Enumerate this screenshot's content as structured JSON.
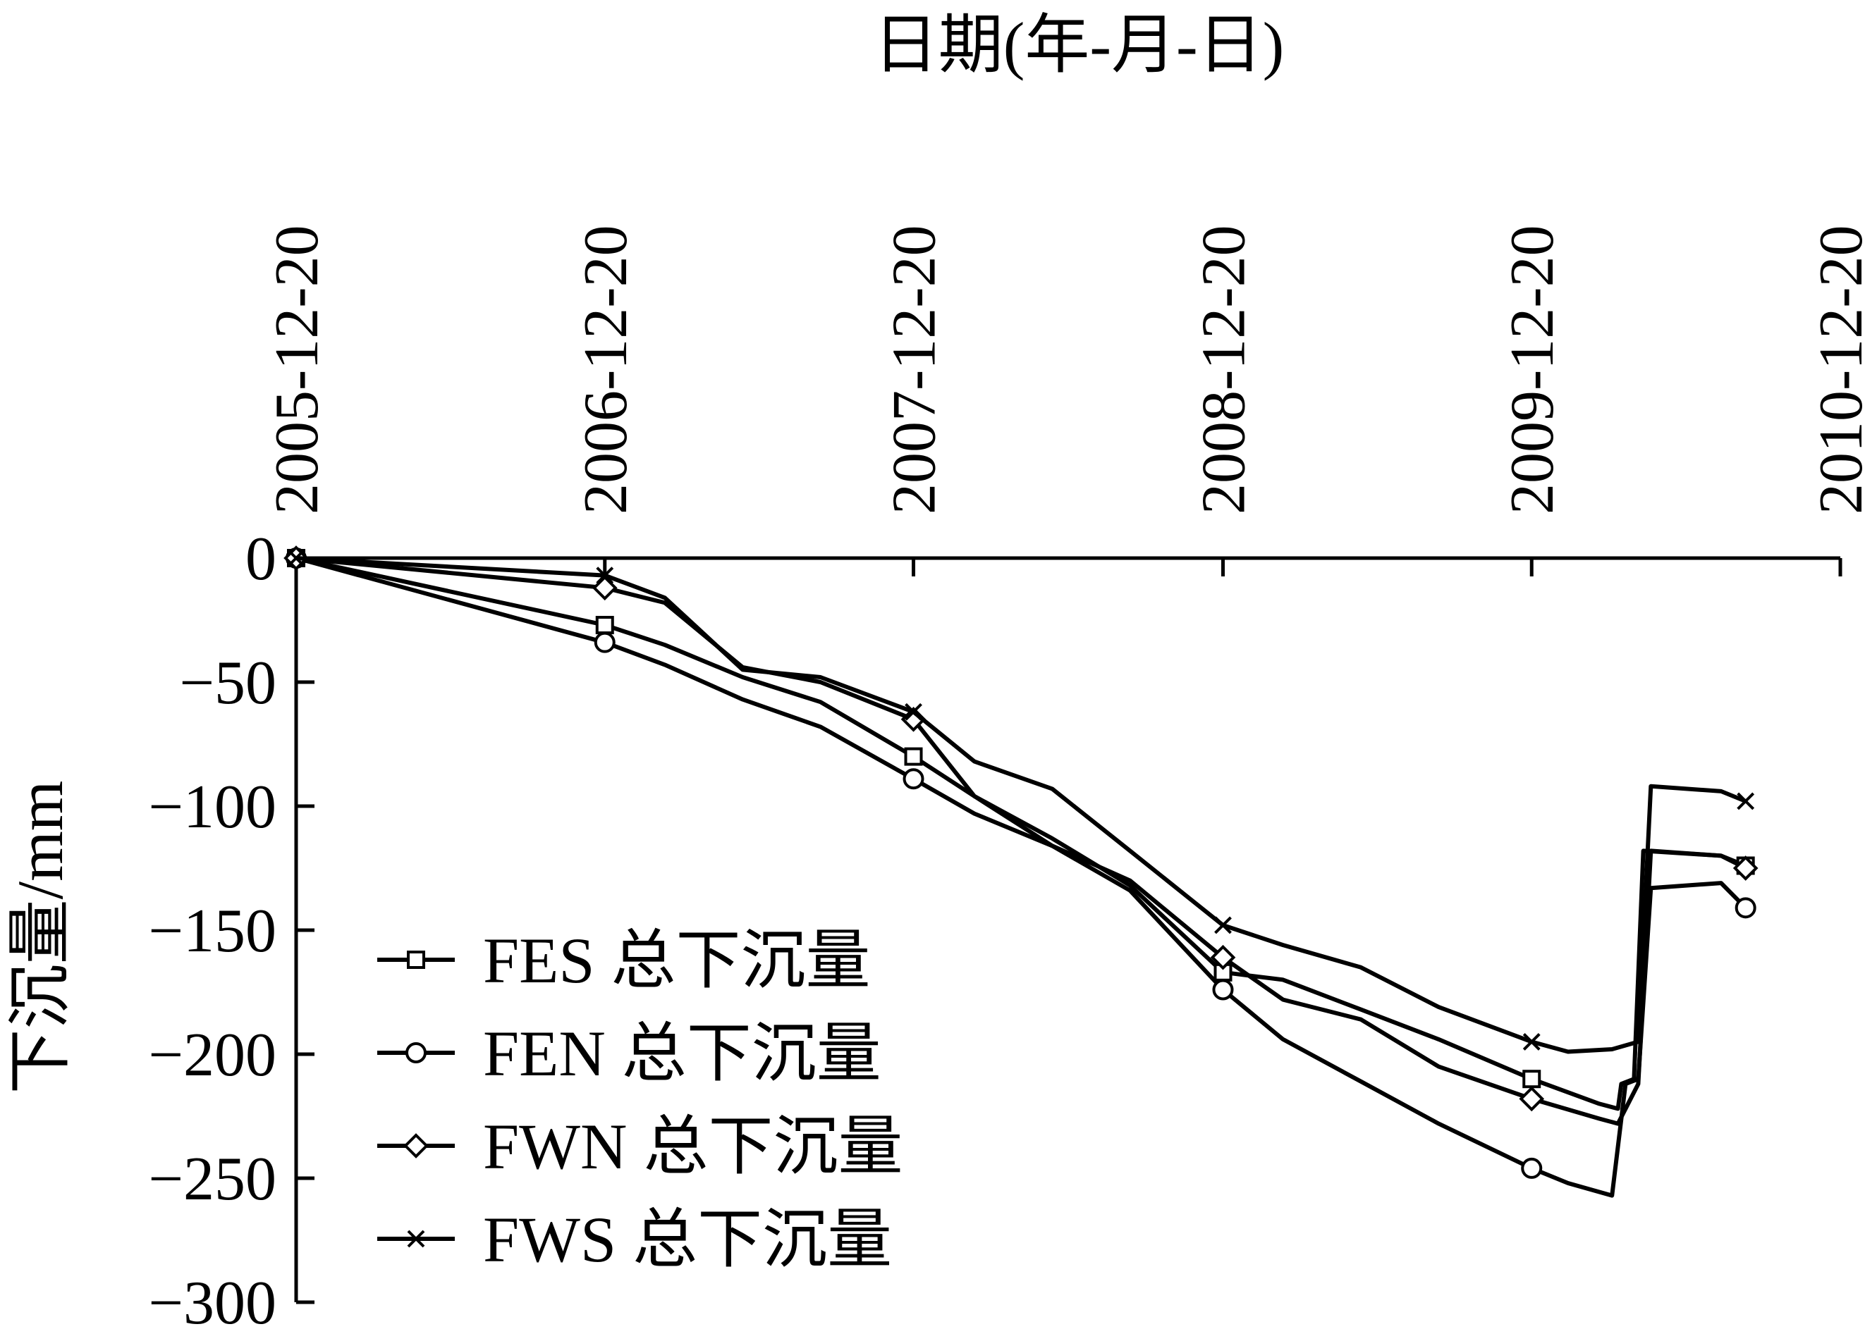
{
  "chart_data": {
    "type": "line",
    "title": "",
    "xlabel": "日期(年-月-日)",
    "ylabel": "下沉量/mm",
    "x_axis_position": "top",
    "x_tick_labels": [
      "2005-12-20",
      "2006-12-20",
      "2007-12-20",
      "2008-12-20",
      "2009-12-20",
      "2010-12-20"
    ],
    "x_range": [
      "2005-12-20",
      "2010-12-20"
    ],
    "y_ticks": [
      0,
      -50,
      -100,
      -150,
      -200,
      -250,
      -300
    ],
    "ylim": [
      -300,
      0
    ],
    "grid": false,
    "legend_position": "bottom-left",
    "series": [
      {
        "name": "FES 总下沉量",
        "marker": "square",
        "points": [
          [
            "2005-12-20",
            0
          ],
          [
            "2006-12-20",
            -27
          ],
          [
            "2007-03-01",
            -35
          ],
          [
            "2007-06-01",
            -48
          ],
          [
            "2007-09-01",
            -58
          ],
          [
            "2007-12-20",
            -80
          ],
          [
            "2008-03-01",
            -96
          ],
          [
            "2008-06-01",
            -113
          ],
          [
            "2008-09-01",
            -132
          ],
          [
            "2008-12-20",
            -167
          ],
          [
            "2009-03-01",
            -170
          ],
          [
            "2009-06-01",
            -182
          ],
          [
            "2009-09-01",
            -194
          ],
          [
            "2009-12-20",
            -210
          ],
          [
            "2010-03-10",
            -220
          ],
          [
            "2010-04-01",
            -222
          ],
          [
            "2010-04-05",
            -212
          ],
          [
            "2010-04-20",
            -210
          ],
          [
            "2010-05-01",
            -118
          ],
          [
            "2010-08-01",
            -120
          ],
          [
            "2010-08-30",
            -124
          ]
        ]
      },
      {
        "name": "FEN 总下沉量",
        "marker": "circle",
        "points": [
          [
            "2005-12-20",
            0
          ],
          [
            "2006-12-20",
            -34
          ],
          [
            "2007-03-01",
            -43
          ],
          [
            "2007-06-01",
            -57
          ],
          [
            "2007-09-01",
            -68
          ],
          [
            "2007-12-20",
            -89
          ],
          [
            "2008-03-01",
            -103
          ],
          [
            "2008-06-01",
            -116
          ],
          [
            "2008-09-01",
            -134
          ],
          [
            "2008-12-20",
            -174
          ],
          [
            "2009-03-01",
            -194
          ],
          [
            "2009-06-01",
            -211
          ],
          [
            "2009-09-01",
            -228
          ],
          [
            "2009-12-20",
            -246
          ],
          [
            "2010-02-01",
            -252
          ],
          [
            "2010-03-25",
            -257
          ],
          [
            "2010-04-10",
            -212
          ],
          [
            "2010-04-25",
            -210
          ],
          [
            "2010-05-10",
            -133
          ],
          [
            "2010-08-01",
            -131
          ],
          [
            "2010-08-30",
            -141
          ]
        ]
      },
      {
        "name": "FWN 总下沉量",
        "marker": "diamond",
        "points": [
          [
            "2005-12-20",
            0
          ],
          [
            "2006-12-20",
            -12
          ],
          [
            "2007-03-01",
            -18
          ],
          [
            "2007-06-01",
            -44
          ],
          [
            "2007-09-01",
            -50
          ],
          [
            "2007-12-20",
            -65
          ],
          [
            "2008-03-01",
            -96
          ],
          [
            "2008-06-01",
            -116
          ],
          [
            "2008-09-01",
            -130
          ],
          [
            "2008-12-20",
            -161
          ],
          [
            "2009-03-01",
            -178
          ],
          [
            "2009-06-01",
            -186
          ],
          [
            "2009-09-01",
            -205
          ],
          [
            "2009-12-20",
            -218
          ],
          [
            "2010-03-10",
            -226
          ],
          [
            "2010-04-01",
            -228
          ],
          [
            "2010-04-25",
            -212
          ],
          [
            "2010-05-10",
            -118
          ],
          [
            "2010-08-01",
            -120
          ],
          [
            "2010-08-30",
            -125
          ]
        ]
      },
      {
        "name": "FWS 总下沉量",
        "marker": "cross",
        "points": [
          [
            "2005-12-20",
            0
          ],
          [
            "2006-12-20",
            -7
          ],
          [
            "2007-03-01",
            -16
          ],
          [
            "2007-06-01",
            -45
          ],
          [
            "2007-09-01",
            -48
          ],
          [
            "2007-12-20",
            -62
          ],
          [
            "2008-03-01",
            -82
          ],
          [
            "2008-06-01",
            -93
          ],
          [
            "2008-09-01",
            -118
          ],
          [
            "2008-12-20",
            -148
          ],
          [
            "2009-03-01",
            -156
          ],
          [
            "2009-06-01",
            -165
          ],
          [
            "2009-09-01",
            -181
          ],
          [
            "2009-12-20",
            -195
          ],
          [
            "2010-02-01",
            -199
          ],
          [
            "2010-03-25",
            -198
          ],
          [
            "2010-04-25",
            -195
          ],
          [
            "2010-05-10",
            -92
          ],
          [
            "2010-08-01",
            -94
          ],
          [
            "2010-08-30",
            -98
          ]
        ]
      }
    ]
  }
}
